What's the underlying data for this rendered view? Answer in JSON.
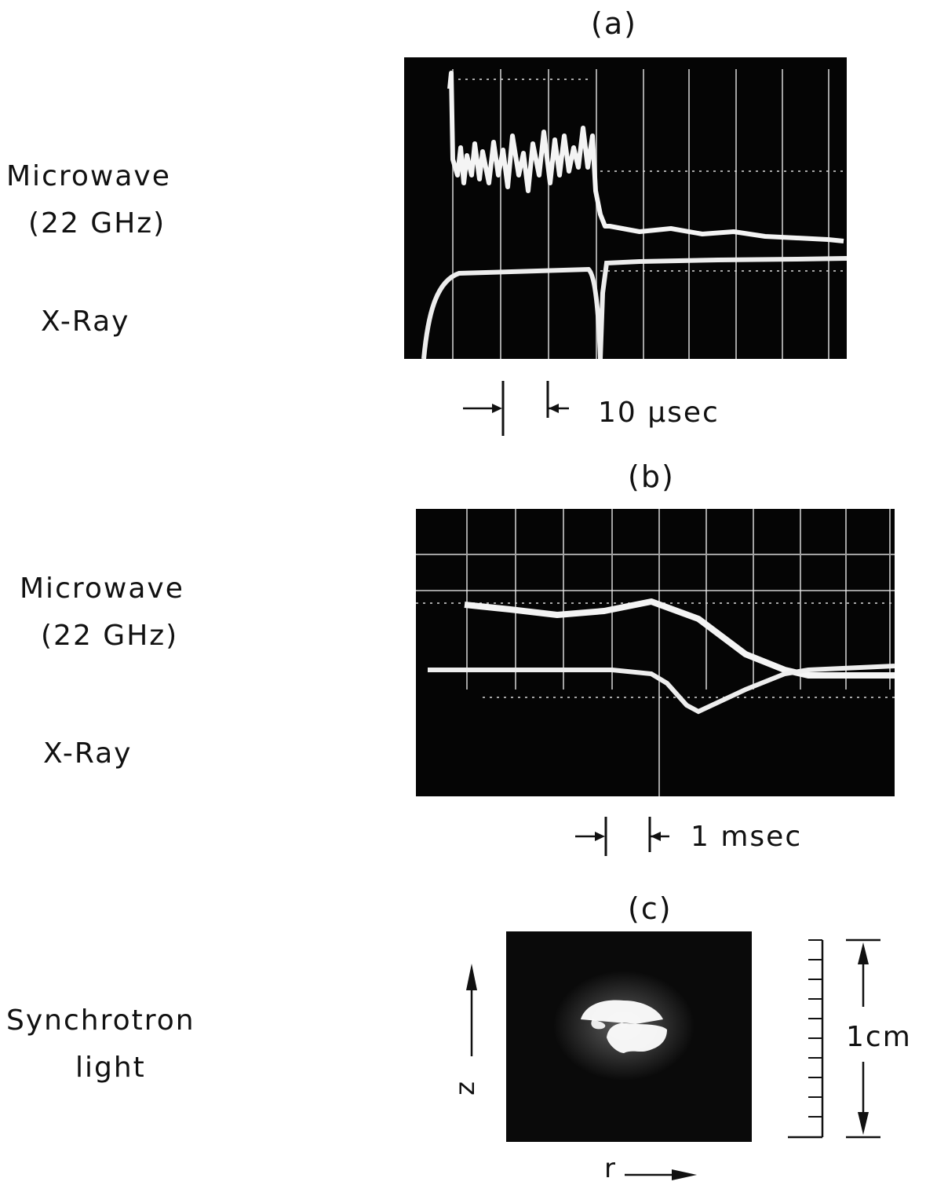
{
  "figure": {
    "panel_a": {
      "label": "(a)",
      "signals": [
        "Microwave",
        "(22 GHz)",
        "X-Ray"
      ],
      "timescale": "10 μsec"
    },
    "panel_b": {
      "label": "(b)",
      "signals": [
        "Microwave",
        "(22 GHz)",
        "X-Ray"
      ],
      "timescale": "1 msec"
    },
    "panel_c": {
      "label": "(c)",
      "signals": [
        "Synchrotron",
        "light"
      ],
      "axis_z": "z",
      "axis_r": "r",
      "scale": "1cm"
    }
  }
}
